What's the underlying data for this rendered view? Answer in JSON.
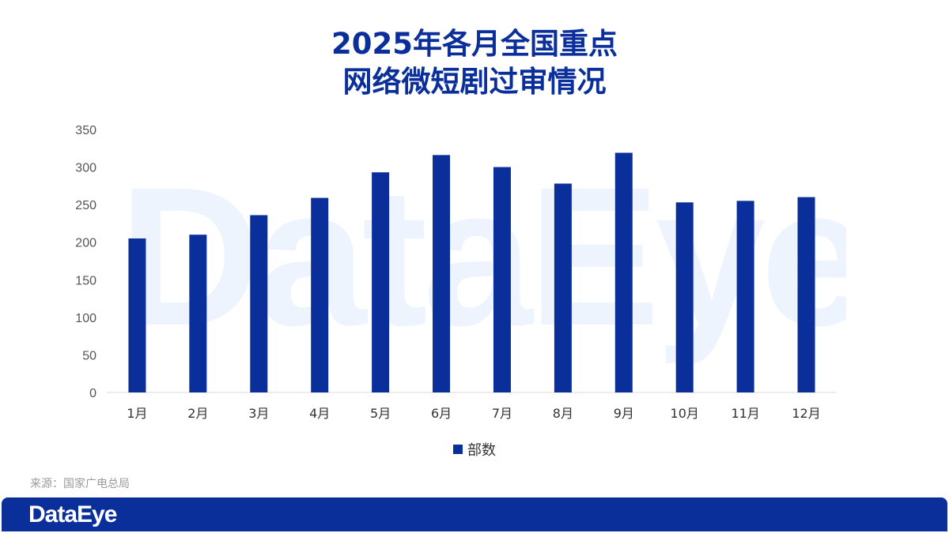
{
  "title_line1": "2025年各月全国重点",
  "title_line2": "网络微短剧过审情况",
  "watermark": "DataEye",
  "source": "来源：国家广电总局",
  "footer_logo": "DataEye",
  "colors": {
    "bar": "#0a2f9a",
    "title": "#0a2f9a",
    "footer": "#0a2f9a",
    "watermark": "#eef4fd"
  },
  "chart_data": {
    "type": "bar",
    "title": "2025年各月全国重点网络微短剧过审情况",
    "categories": [
      "1月",
      "2月",
      "3月",
      "4月",
      "5月",
      "6月",
      "7月",
      "8月",
      "9月",
      "10月",
      "11月",
      "12月"
    ],
    "series": [
      {
        "name": "部数",
        "values": [
          205,
          210,
          236,
          259,
          293,
          316,
          300,
          278,
          319,
          253,
          255,
          260
        ]
      }
    ],
    "ylim": [
      0,
      350
    ],
    "yticks": [
      0,
      50,
      100,
      150,
      200,
      250,
      300,
      350
    ],
    "grid": false,
    "legend": "bottom-center"
  }
}
